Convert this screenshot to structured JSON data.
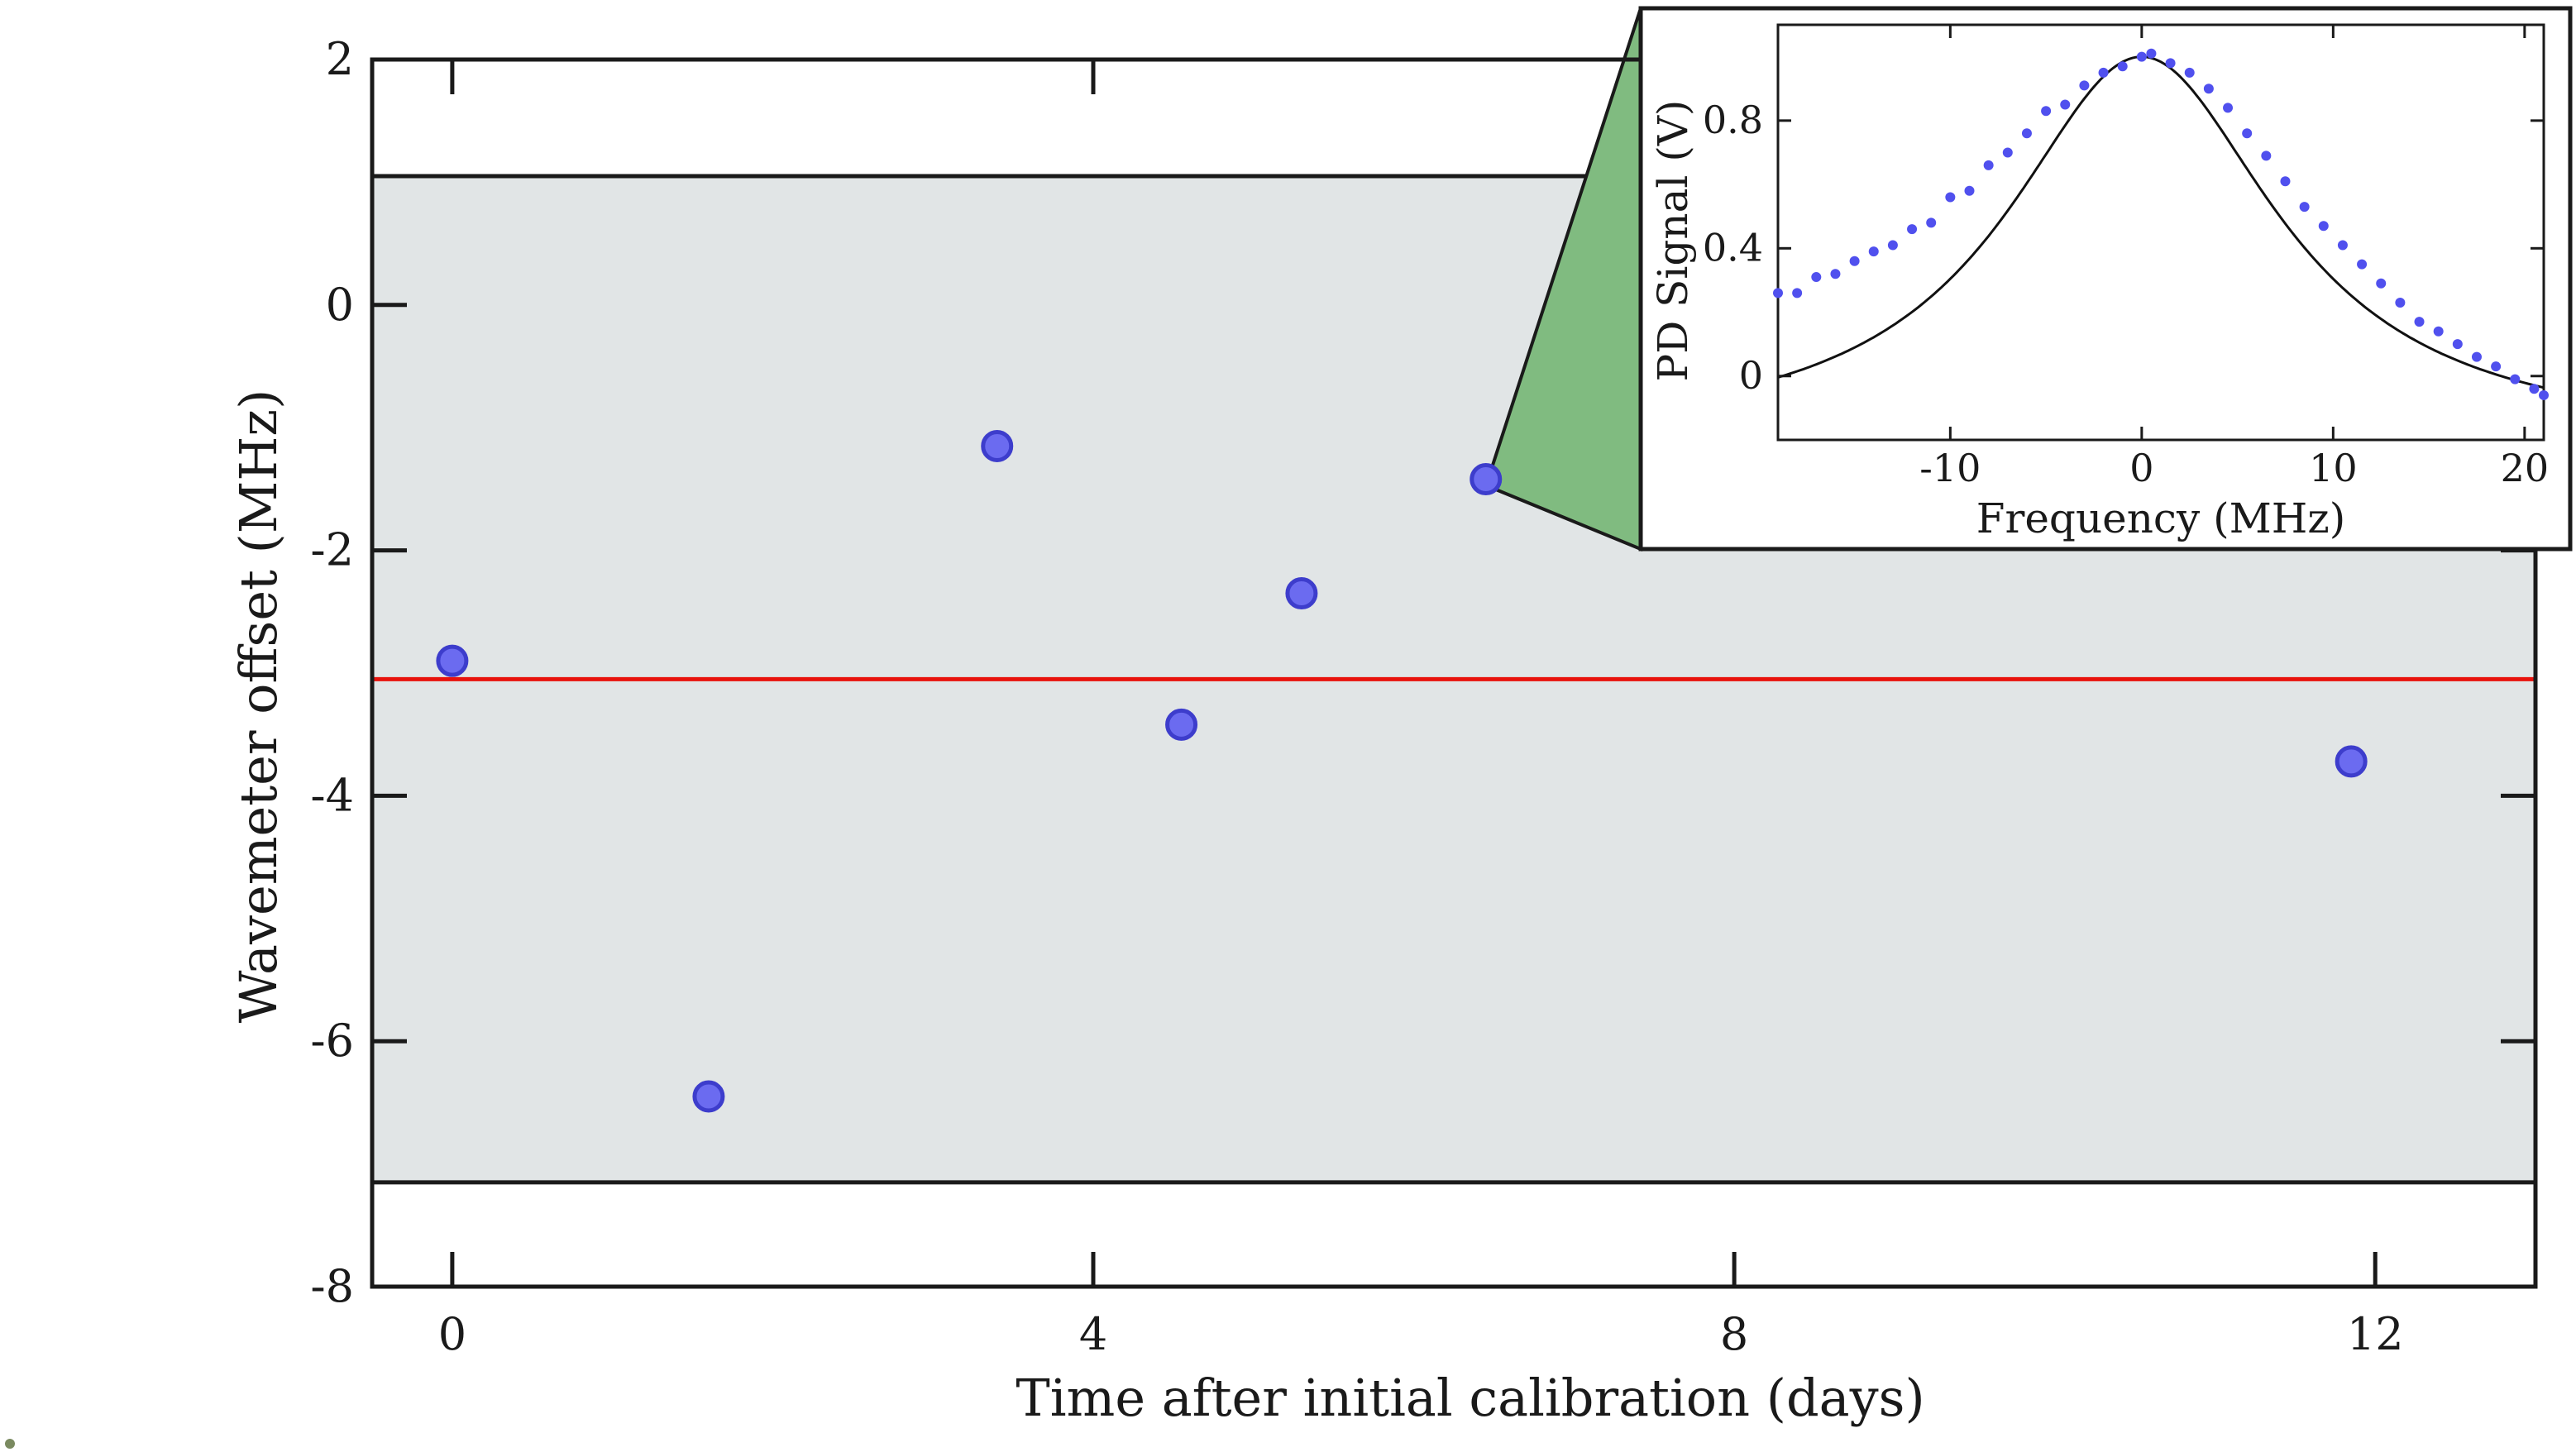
{
  "chart_data": [
    {
      "type": "scatter",
      "xlabel": "Time after initial calibration (days)",
      "ylabel": "Wavemeter offset (MHz)",
      "xlim": [
        -0.5,
        13.0
      ],
      "ylim": [
        -8,
        2
      ],
      "xticks": [
        0,
        4,
        8,
        12
      ],
      "yticks": [
        -8,
        -6,
        -4,
        -2,
        0,
        2
      ],
      "grid": false,
      "points": [
        {
          "x": 0.0,
          "y": -2.9
        },
        {
          "x": 1.6,
          "y": -6.45
        },
        {
          "x": 3.4,
          "y": -1.15
        },
        {
          "x": 4.55,
          "y": -3.42
        },
        {
          "x": 5.3,
          "y": -2.35
        },
        {
          "x": 6.45,
          "y": -1.42
        },
        {
          "x": 11.85,
          "y": -3.72
        }
      ],
      "mean_line": {
        "y": -3.05,
        "color": "#e8120c"
      },
      "band": {
        "y_low": -7.15,
        "y_high": 1.05,
        "color": "#e1e5e6"
      },
      "zoomed_point_index": 5,
      "colors": {
        "points": "#6b6bf0",
        "point_edge": "#3d3dcc",
        "zoom_wedge": "#80bb80"
      }
    },
    {
      "type": "scatter",
      "xlabel": "Frequency (MHz)",
      "ylabel": "PD Signal (V)",
      "xlim": [
        -19,
        21
      ],
      "ylim": [
        -0.2,
        1.1
      ],
      "xticks": [
        -10,
        0,
        10,
        20
      ],
      "yticks": [
        0,
        0.4,
        0.8
      ],
      "ytick_labels": [
        "0",
        "0.4",
        "0.8"
      ],
      "grid": false,
      "points": [
        {
          "x": -19,
          "y": 0.26
        },
        {
          "x": -18,
          "y": 0.26
        },
        {
          "x": -17,
          "y": 0.31
        },
        {
          "x": -16,
          "y": 0.32
        },
        {
          "x": -15,
          "y": 0.36
        },
        {
          "x": -14,
          "y": 0.39
        },
        {
          "x": -13,
          "y": 0.41
        },
        {
          "x": -12,
          "y": 0.46
        },
        {
          "x": -11,
          "y": 0.48
        },
        {
          "x": -10,
          "y": 0.56
        },
        {
          "x": -9,
          "y": 0.58
        },
        {
          "x": -8,
          "y": 0.66
        },
        {
          "x": -7,
          "y": 0.7
        },
        {
          "x": -6,
          "y": 0.76
        },
        {
          "x": -5,
          "y": 0.83
        },
        {
          "x": -4,
          "y": 0.85
        },
        {
          "x": -3,
          "y": 0.91
        },
        {
          "x": -2,
          "y": 0.95
        },
        {
          "x": -1,
          "y": 0.97
        },
        {
          "x": 0,
          "y": 1.0
        },
        {
          "x": 0.5,
          "y": 1.01
        },
        {
          "x": 1.5,
          "y": 0.98
        },
        {
          "x": 2.5,
          "y": 0.95
        },
        {
          "x": 3.5,
          "y": 0.9
        },
        {
          "x": 4.5,
          "y": 0.84
        },
        {
          "x": 5.5,
          "y": 0.76
        },
        {
          "x": 6.5,
          "y": 0.69
        },
        {
          "x": 7.5,
          "y": 0.61
        },
        {
          "x": 8.5,
          "y": 0.53
        },
        {
          "x": 9.5,
          "y": 0.47
        },
        {
          "x": 10.5,
          "y": 0.41
        },
        {
          "x": 11.5,
          "y": 0.35
        },
        {
          "x": 12.5,
          "y": 0.29
        },
        {
          "x": 13.5,
          "y": 0.23
        },
        {
          "x": 14.5,
          "y": 0.17
        },
        {
          "x": 15.5,
          "y": 0.14
        },
        {
          "x": 16.5,
          "y": 0.1
        },
        {
          "x": 17.5,
          "y": 0.06
        },
        {
          "x": 18.5,
          "y": 0.03
        },
        {
          "x": 19.5,
          "y": -0.01
        },
        {
          "x": 20.5,
          "y": -0.04
        },
        {
          "x": 21,
          "y": -0.06
        }
      ],
      "fit_line": {
        "model": "lorentzian",
        "amplitude": 1.21,
        "center": 0.0,
        "hwhm": 8.6,
        "offset": -0.21,
        "color": "#111111"
      },
      "colors": {
        "points": "#5050ee"
      }
    }
  ]
}
